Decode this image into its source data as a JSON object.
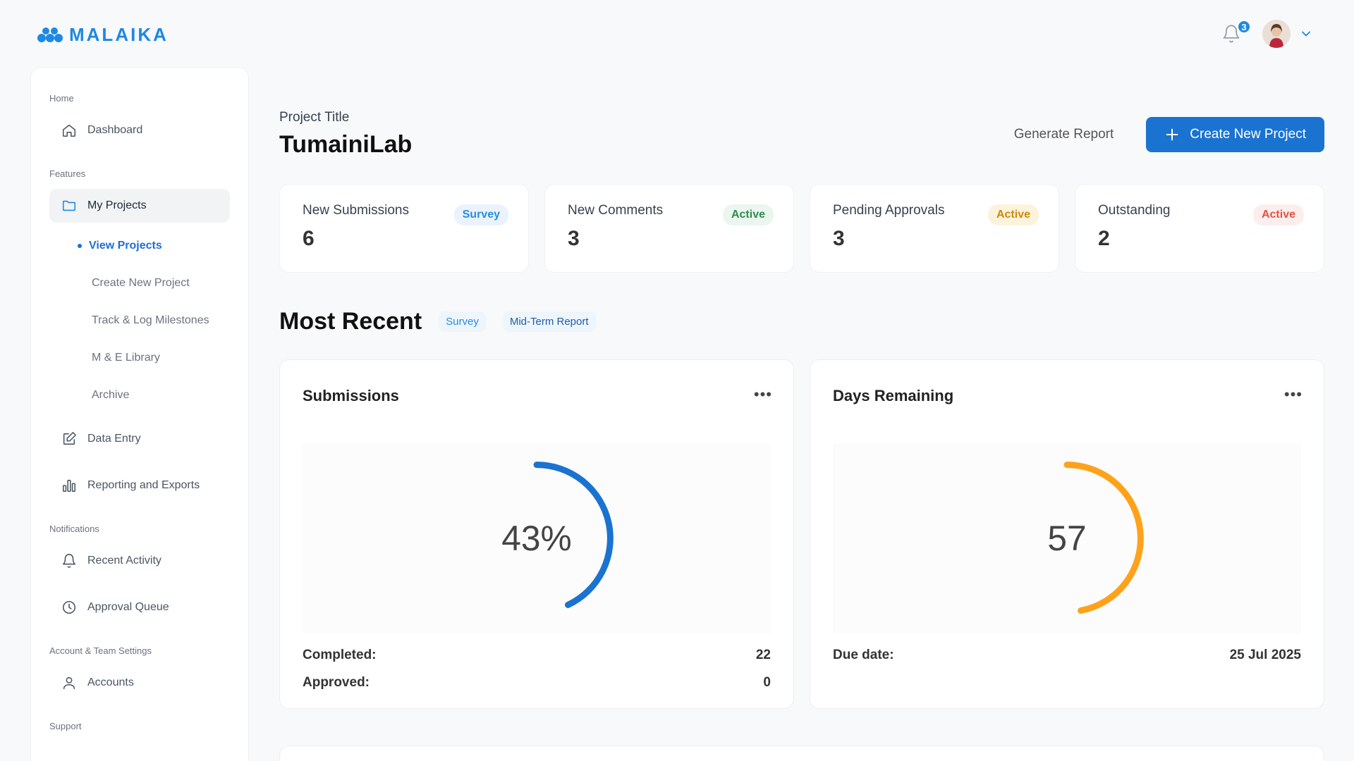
{
  "app": {
    "name": "MALAIKA"
  },
  "topbar": {
    "notification_count": "3"
  },
  "sidebar": {
    "sections": {
      "home": "Home",
      "features": "Features",
      "notifications": "Notifications",
      "account": "Account & Team Settings",
      "support": "Support"
    },
    "dashboard": "Dashboard",
    "my_projects": "My Projects",
    "sub": {
      "view_projects": "View Projects",
      "create_project": "Create New Project",
      "track": "Track & Log Milestones",
      "library": "M & E Library",
      "archive": "Archive"
    },
    "data_entry": "Data Entry",
    "reporting": "Reporting and Exports",
    "recent_activity": "Recent Activity",
    "approval_queue": "Approval Queue",
    "accounts": "Accounts"
  },
  "header": {
    "label": "Project Title",
    "name": "TumainiLab",
    "generate_report": "Generate Report",
    "create_button": "Create New Project"
  },
  "stats": [
    {
      "label": "New Submissions",
      "value": "6",
      "pill": "Survey"
    },
    {
      "label": "New Comments",
      "value": "3",
      "pill": "Active"
    },
    {
      "label": "Pending Approvals",
      "value": "3",
      "pill": "Active"
    },
    {
      "label": "Outstanding",
      "value": "2",
      "pill": "Active"
    }
  ],
  "recent": {
    "title": "Most Recent",
    "tags": [
      "Survey",
      "Mid-Term Report"
    ]
  },
  "submissions": {
    "title": "Submissions",
    "percent": 43,
    "percent_label": "43%",
    "completed_label": "Completed:",
    "completed_value": "22",
    "approved_label": "Approved:",
    "approved_value": "0",
    "color": "#1a73d1"
  },
  "days": {
    "title": "Days Remaining",
    "value": "57",
    "fraction": 0.47,
    "due_label": "Due date:",
    "due_value": "25 Jul 2025",
    "color": "#ffa21a"
  },
  "icons": {
    "bell": "bell-icon",
    "chevron": "chevron-down-icon",
    "more": "more-horizontal-icon"
  },
  "more_glyph": "•••"
}
